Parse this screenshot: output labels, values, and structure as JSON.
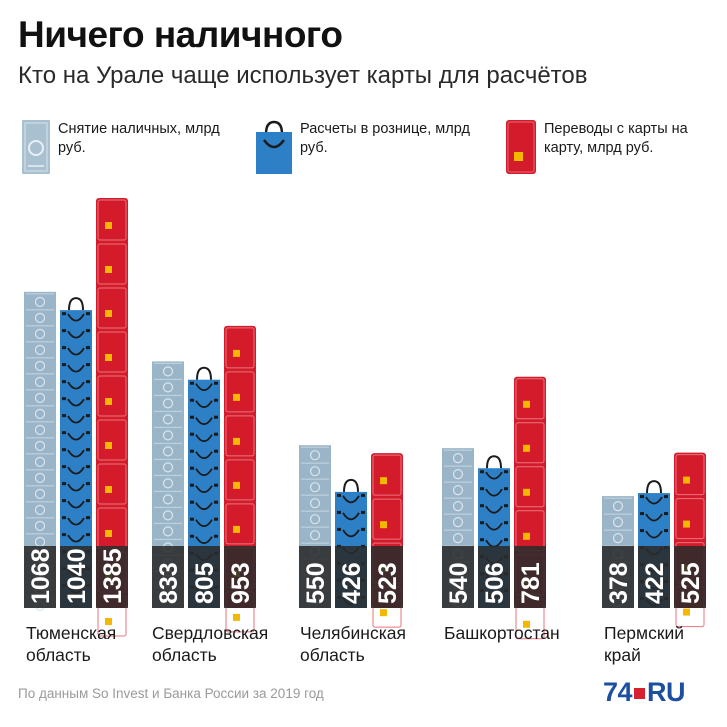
{
  "title": "Ничего наличного",
  "subtitle": "Кто на Урале чаще использует карты для расчётов",
  "legend": {
    "cash": "Снятие наличных, млрд руб.",
    "retail": "Расчеты в рознице, млрд руб.",
    "transfer": "Переводы с карты на карту, млрд руб."
  },
  "regions": [
    {
      "label": "Тюменская область"
    },
    {
      "label": "Свердловская область"
    },
    {
      "label": "Челябинская область"
    },
    {
      "label": "Башкортостан"
    },
    {
      "label": "Пермский край"
    }
  ],
  "chart_data": {
    "type": "bar",
    "categories": [
      "Тюменская область",
      "Свердловская область",
      "Челябинская область",
      "Башкортостан",
      "Пермский край"
    ],
    "series": [
      {
        "name": "Снятие наличных, млрд руб.",
        "values": [
          1068,
          833,
          550,
          540,
          378
        ],
        "color": "#9bb5c8"
      },
      {
        "name": "Расчеты в рознице, млрд руб.",
        "values": [
          1040,
          805,
          426,
          506,
          422
        ],
        "color": "#2d7fc6"
      },
      {
        "name": "Переводы с карты на карту, млрд руб.",
        "values": [
          1385,
          953,
          523,
          781,
          525
        ],
        "color": "#d31b2b"
      }
    ],
    "data_labels": [
      "1068",
      "1040",
      "1385",
      "833",
      "805",
      "953",
      "550",
      "426",
      "523",
      "540",
      "506",
      "781",
      "378",
      "422",
      "525"
    ],
    "legend_position": "top",
    "grid": false
  },
  "footer": {
    "source": "По данным So Invest и Банка России за 2019 год",
    "brand_num": "74",
    "brand_ru": "RU"
  }
}
